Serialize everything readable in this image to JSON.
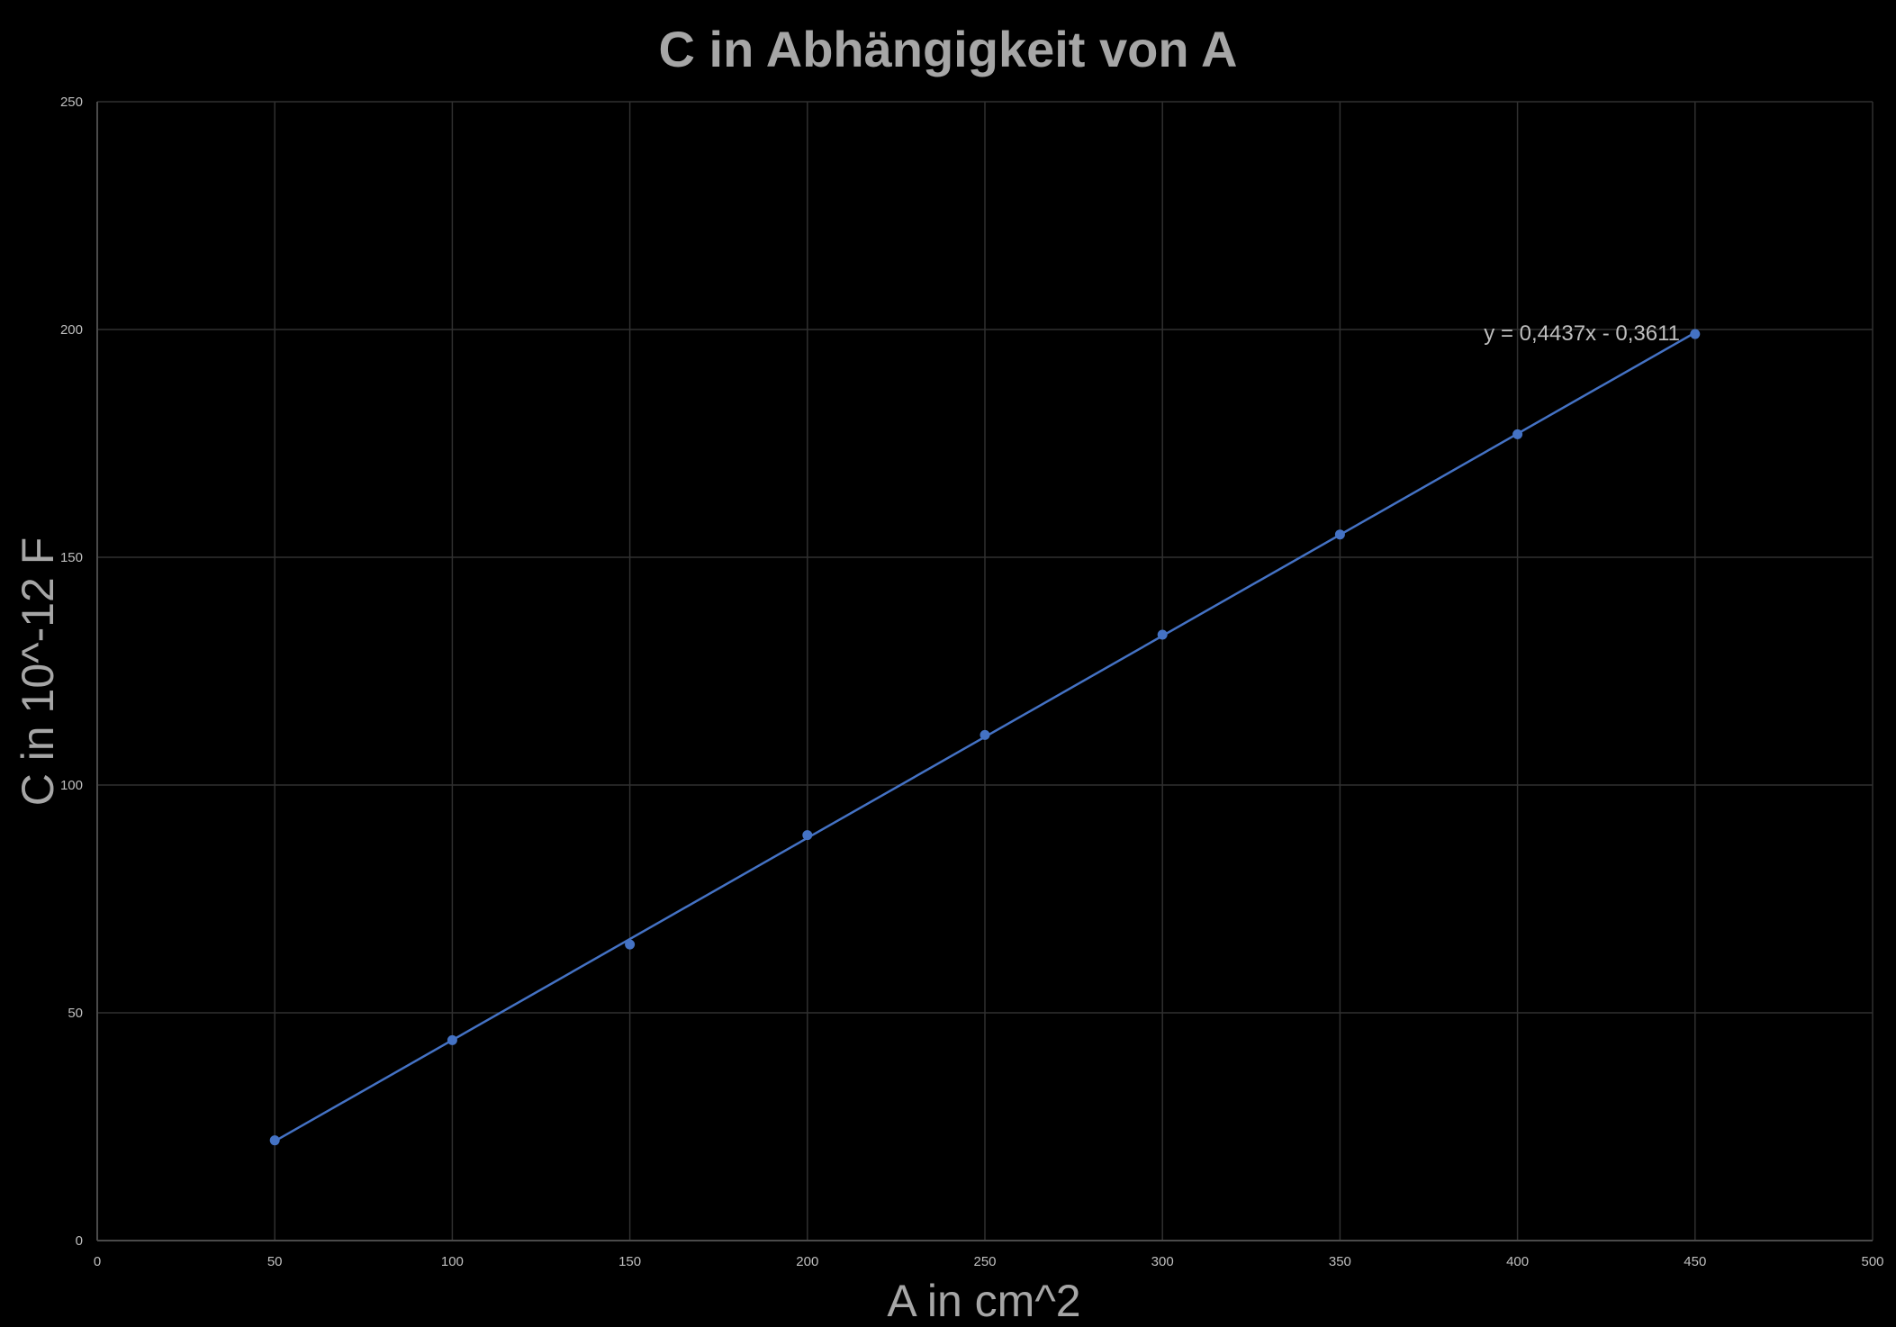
{
  "chart_data": {
    "type": "scatter",
    "title": "C in Abhängigkeit von A",
    "xlabel": "A in cm^2",
    "ylabel": "C in 10^-12 F",
    "xlim": [
      0,
      500
    ],
    "ylim": [
      0,
      250
    ],
    "xticks": [
      0,
      50,
      100,
      150,
      200,
      250,
      300,
      350,
      400,
      450,
      500
    ],
    "yticks": [
      0,
      50,
      100,
      150,
      200,
      250
    ],
    "grid": true,
    "legend": "none",
    "series": [
      {
        "name": "C",
        "x": [
          50,
          100,
          150,
          200,
          250,
          300,
          350,
          400,
          450
        ],
        "y": [
          22,
          44,
          65,
          89,
          111,
          133,
          155,
          177,
          199
        ],
        "color": "#4472c4"
      }
    ],
    "trendline": {
      "type": "linear",
      "slope": 0.4437,
      "intercept": -0.3611,
      "x_range": [
        50,
        450
      ],
      "equation": "y = 0,4437x - 0,3611",
      "color": "#4472c4"
    },
    "colors": {
      "background": "#000000",
      "grid": "#303030",
      "axis": "#4a4a4a",
      "tick_text": "#bfbfbf",
      "title_text": "#a6a6a6"
    }
  }
}
